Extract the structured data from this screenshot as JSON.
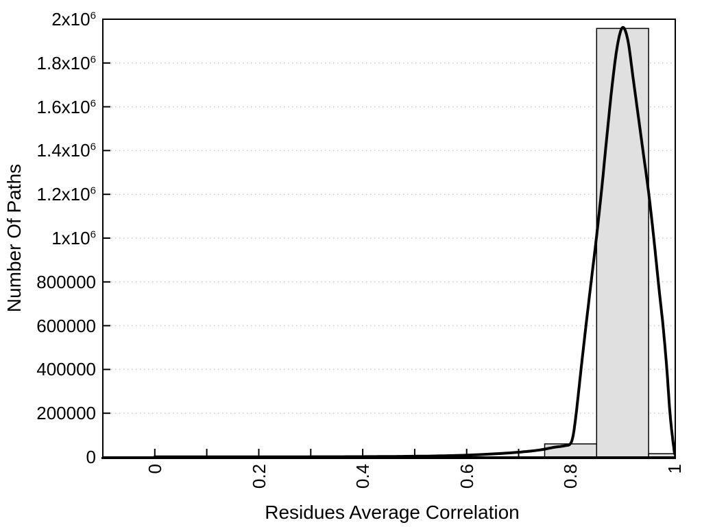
{
  "chart_data": {
    "type": "bar",
    "variant": "histogram-with-fit-curve",
    "title": "",
    "xlabel": "Residues Average Correlation",
    "ylabel": "Number Of Paths",
    "xlim": [
      -0.1,
      1.0
    ],
    "ylim": [
      0,
      2000000
    ],
    "grid": "horizontal dotted gridline at every labeled y tick",
    "legend": "none",
    "colors": {
      "background": "#ffffff",
      "bar_fill": "#e0e0e0",
      "bar_stroke": "#000000",
      "curve": "#000000",
      "grid": "#c8c8c8",
      "frame": "#000000"
    },
    "bars": [
      {
        "x0": 0.75,
        "x1": 0.85,
        "value": 60000
      },
      {
        "x0": 0.85,
        "x1": 0.95,
        "value": 1958000
      },
      {
        "x0": 0.95,
        "x1": 1.0,
        "value": 15000
      }
    ],
    "curve_points": [
      [
        0.0,
        800
      ],
      [
        0.05,
        800
      ],
      [
        0.1,
        800
      ],
      [
        0.15,
        800
      ],
      [
        0.2,
        900
      ],
      [
        0.25,
        1000
      ],
      [
        0.3,
        1100
      ],
      [
        0.35,
        1300
      ],
      [
        0.4,
        1700
      ],
      [
        0.45,
        2400
      ],
      [
        0.5,
        3500
      ],
      [
        0.55,
        5200
      ],
      [
        0.6,
        8500
      ],
      [
        0.65,
        14000
      ],
      [
        0.7,
        22000
      ],
      [
        0.74,
        32000
      ],
      [
        0.77,
        45000
      ],
      [
        0.79,
        52000
      ],
      [
        0.8,
        62000
      ],
      [
        0.805,
        100000
      ],
      [
        0.81,
        185000
      ],
      [
        0.815,
        290000
      ],
      [
        0.82,
        400000
      ],
      [
        0.83,
        610000
      ],
      [
        0.84,
        810000
      ],
      [
        0.85,
        1010000
      ],
      [
        0.86,
        1230000
      ],
      [
        0.87,
        1470000
      ],
      [
        0.88,
        1700000
      ],
      [
        0.89,
        1880000
      ],
      [
        0.9,
        1962000
      ],
      [
        0.91,
        1905000
      ],
      [
        0.92,
        1735000
      ],
      [
        0.93,
        1560000
      ],
      [
        0.94,
        1385000
      ],
      [
        0.95,
        1210000
      ],
      [
        0.96,
        1000000
      ],
      [
        0.97,
        770000
      ],
      [
        0.978,
        595000
      ],
      [
        0.985,
        405000
      ],
      [
        0.991,
        205000
      ],
      [
        0.996,
        90000
      ],
      [
        1.0,
        15000
      ]
    ],
    "x_ticks": {
      "labeled": [
        {
          "v": 0,
          "label": "0"
        },
        {
          "v": 0.2,
          "label": "0.2"
        },
        {
          "v": 0.4,
          "label": "0.4"
        },
        {
          "v": 0.6,
          "label": "0.6"
        },
        {
          "v": 0.8,
          "label": "0.8"
        },
        {
          "v": 1,
          "label": "1"
        }
      ],
      "minor": [
        0.1,
        0.3,
        0.5,
        0.7,
        0.9
      ],
      "label_rotation_deg": -90
    },
    "y_ticks": [
      {
        "v": 0,
        "base": "0"
      },
      {
        "v": 200000,
        "base": "200000"
      },
      {
        "v": 400000,
        "base": "400000"
      },
      {
        "v": 600000,
        "base": "600000"
      },
      {
        "v": 800000,
        "base": "800000"
      },
      {
        "v": 1000000,
        "base": "1x10",
        "exp": "6"
      },
      {
        "v": 1200000,
        "base": "1.2x10",
        "exp": "6"
      },
      {
        "v": 1400000,
        "base": "1.4x10",
        "exp": "6"
      },
      {
        "v": 1600000,
        "base": "1.6x10",
        "exp": "6"
      },
      {
        "v": 1800000,
        "base": "1.8x10",
        "exp": "6"
      },
      {
        "v": 2000000,
        "base": "2x10",
        "exp": "6"
      }
    ]
  }
}
